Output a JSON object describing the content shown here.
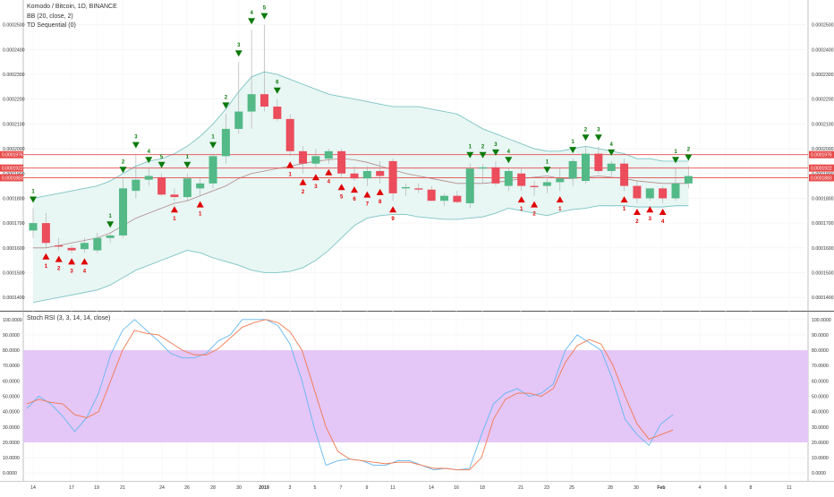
{
  "legend": {
    "symbol": "Komodo / Bitcoin, 1D, BINANCE",
    "bb": "BB (20, close, 2)",
    "td": "TD Sequential (0)",
    "stoch": "Stoch RSI (3, 3, 14, 14, close)"
  },
  "colors": {
    "up": "#53b987",
    "down": "#eb4d5c",
    "bb_band": "#7ec4c4",
    "bb_fill": "#e8f6f4",
    "bb_basis": "#b08a8a",
    "td_sell": "#0a7a0a",
    "td_buy": "#e00000",
    "stoch_k": "#63b8f0",
    "stoch_d": "#f4784e",
    "stoch_band": "#e4c6f7",
    "hline": "#e84a4a"
  },
  "chart_data": [
    {
      "type": "candlestick",
      "title": "Komodo / Bitcoin, 1D, BINANCE",
      "ylim": [
        0.000135,
        0.00026
      ],
      "y_ticks": [
        "0.0001400",
        "0.0001500",
        "0.0001600",
        "0.0001700",
        "0.0001800",
        "0.0001900",
        "0.0002000",
        "0.0002100",
        "0.0002200",
        "0.0002300",
        "0.0002400",
        "0.0002500"
      ],
      "x_ticks": [
        "14",
        "17",
        "19",
        "21",
        "24",
        "26",
        "28",
        "30",
        "2019",
        "3",
        "5",
        "7",
        "9",
        "11",
        "14",
        "16",
        "18",
        "21",
        "23",
        "25",
        "28",
        "30",
        "Feb",
        "4",
        "6",
        "8",
        "11"
      ],
      "price_lines": [
        {
          "value": 0.0001976,
          "label": "0.0001976"
        },
        {
          "value": 0.0001922,
          "label": "0.0001922"
        },
        {
          "value": 0.0001883,
          "label": "0.0001883"
        }
      ],
      "candles": [
        {
          "o": 0.000167,
          "h": 0.000176,
          "l": 0.000164,
          "c": 0.00017
        },
        {
          "o": 0.00017,
          "h": 0.000174,
          "l": 0.00016,
          "c": 0.000162
        },
        {
          "o": 0.000161,
          "h": 0.000164,
          "l": 0.000159,
          "c": 0.0001605
        },
        {
          "o": 0.00016,
          "h": 0.000161,
          "l": 0.000158,
          "c": 0.000159
        },
        {
          "o": 0.0001595,
          "h": 0.000164,
          "l": 0.000158,
          "c": 0.000162
        },
        {
          "o": 0.000159,
          "h": 0.000166,
          "l": 0.000158,
          "c": 0.000164
        },
        {
          "o": 0.000164,
          "h": 0.000166,
          "l": 0.000162,
          "c": 0.000165
        },
        {
          "o": 0.000165,
          "h": 0.000188,
          "l": 0.000164,
          "c": 0.000184
        },
        {
          "o": 0.000183,
          "h": 0.000198,
          "l": 0.00018,
          "c": 0.0001875
        },
        {
          "o": 0.0001875,
          "h": 0.000192,
          "l": 0.000185,
          "c": 0.000189
        },
        {
          "o": 0.0001885,
          "h": 0.00019,
          "l": 0.000181,
          "c": 0.0001815
        },
        {
          "o": 0.0001815,
          "h": 0.000184,
          "l": 0.000179,
          "c": 0.0001805
        },
        {
          "o": 0.0001805,
          "h": 0.00019,
          "l": 0.000179,
          "c": 0.000188
        },
        {
          "o": 0.000184,
          "h": 0.000188,
          "l": 0.000181,
          "c": 0.000186
        },
        {
          "o": 0.000186,
          "h": 0.000198,
          "l": 0.000184,
          "c": 0.000197
        },
        {
          "o": 0.000197,
          "h": 0.000214,
          "l": 0.000194,
          "c": 0.000208
        },
        {
          "o": 0.000208,
          "h": 0.000235,
          "l": 0.000206,
          "c": 0.000215
        },
        {
          "o": 0.000215,
          "h": 0.000248,
          "l": 0.000208,
          "c": 0.000222
        },
        {
          "o": 0.000222,
          "h": 0.00025,
          "l": 0.000215,
          "c": 0.000217
        },
        {
          "o": 0.000217,
          "h": 0.00022,
          "l": 0.000211,
          "c": 0.000212
        },
        {
          "o": 0.000212,
          "h": 0.000214,
          "l": 0.000197,
          "c": 0.000199
        },
        {
          "o": 0.000199,
          "h": 0.000201,
          "l": 0.00019,
          "c": 0.000194
        },
        {
          "o": 0.000194,
          "h": 0.0002,
          "l": 0.000192,
          "c": 0.000197
        },
        {
          "o": 0.000196,
          "h": 0.0002,
          "l": 0.000194,
          "c": 0.000199
        },
        {
          "o": 0.000199,
          "h": 0.0002,
          "l": 0.000188,
          "c": 0.00019
        },
        {
          "o": 0.00019,
          "h": 0.000193,
          "l": 0.000187,
          "c": 0.000188
        },
        {
          "o": 0.000188,
          "h": 0.000193,
          "l": 0.000185,
          "c": 0.000191
        },
        {
          "o": 0.000191,
          "h": 0.000195,
          "l": 0.000186,
          "c": 0.000189
        },
        {
          "o": 0.000195,
          "h": 0.000196,
          "l": 0.000179,
          "c": 0.000182
        },
        {
          "o": 0.000184,
          "h": 0.000186,
          "l": 0.000181,
          "c": 0.0001845
        },
        {
          "o": 0.000184,
          "h": 0.000186,
          "l": 0.000182,
          "c": 0.0001835
        },
        {
          "o": 0.0001835,
          "h": 0.000185,
          "l": 0.000179,
          "c": 0.000179
        },
        {
          "o": 0.000179,
          "h": 0.000182,
          "l": 0.000177,
          "c": 0.000181
        },
        {
          "o": 0.000181,
          "h": 0.000183,
          "l": 0.000178,
          "c": 0.0001785
        },
        {
          "o": 0.000178,
          "h": 0.000194,
          "l": 0.000176,
          "c": 0.000192
        },
        {
          "o": 0.000192,
          "h": 0.000194,
          "l": 0.000186,
          "c": 0.0001925
        },
        {
          "o": 0.0001925,
          "h": 0.000195,
          "l": 0.000185,
          "c": 0.000186
        },
        {
          "o": 0.000185,
          "h": 0.000192,
          "l": 0.000183,
          "c": 0.000191
        },
        {
          "o": 0.00019,
          "h": 0.000192,
          "l": 0.000183,
          "c": 0.000185
        },
        {
          "o": 0.000185,
          "h": 0.000187,
          "l": 0.000181,
          "c": 0.0001845
        },
        {
          "o": 0.000185,
          "h": 0.000188,
          "l": 0.000182,
          "c": 0.0001865
        },
        {
          "o": 0.0001865,
          "h": 0.000192,
          "l": 0.000183,
          "c": 0.000188
        },
        {
          "o": 0.000188,
          "h": 0.000196,
          "l": 0.000185,
          "c": 0.000195
        },
        {
          "o": 0.000187,
          "h": 0.000201,
          "l": 0.000186,
          "c": 0.000198
        },
        {
          "o": 0.000198,
          "h": 0.000201,
          "l": 0.00019,
          "c": 0.000191
        },
        {
          "o": 0.000191,
          "h": 0.000195,
          "l": 0.000189,
          "c": 0.000194
        },
        {
          "o": 0.000194,
          "h": 0.000196,
          "l": 0.000183,
          "c": 0.000185
        },
        {
          "o": 0.000185,
          "h": 0.000187,
          "l": 0.000178,
          "c": 0.00018
        },
        {
          "o": 0.00018,
          "h": 0.000184,
          "l": 0.000179,
          "c": 0.000184
        },
        {
          "o": 0.000184,
          "h": 0.000185,
          "l": 0.000178,
          "c": 0.00018
        },
        {
          "o": 0.00018,
          "h": 0.000192,
          "l": 0.000179,
          "c": 0.000186
        },
        {
          "o": 0.000186,
          "h": 0.000193,
          "l": 0.000184,
          "c": 0.000189
        }
      ],
      "bb_upper": [
        0.00018,
        0.000181,
        0.000182,
        0.000183,
        0.000184,
        0.000185,
        0.000187,
        0.00019,
        0.000193,
        0.000195,
        0.000196,
        0.000198,
        0.000201,
        0.000205,
        0.00021,
        0.000216,
        0.000223,
        0.000229,
        0.000231,
        0.00023,
        0.000228,
        0.000226,
        0.000224,
        0.000222,
        0.000221,
        0.00022,
        0.000219,
        0.000218,
        0.000217,
        0.000217,
        0.000217,
        0.000216,
        0.000215,
        0.000214,
        0.000211,
        0.000208,
        0.000206,
        0.000204,
        0.000202,
        0.0002,
        0.000199,
        0.000199,
        0.0002,
        0.000201,
        0.0002,
        0.000199,
        0.000198,
        0.000196,
        0.000196,
        0.000195,
        0.000195,
        0.000195
      ],
      "bb_basis": [
        0.00016,
        0.00016,
        0.000161,
        0.000162,
        0.000163,
        0.000164,
        0.000166,
        0.000169,
        0.000172,
        0.000174,
        0.000176,
        0.000178,
        0.000179,
        0.000181,
        0.000183,
        0.000185,
        0.000188,
        0.00019,
        0.000191,
        0.000192,
        0.000193,
        0.000194,
        0.000195,
        0.0001955,
        0.000196,
        0.0001955,
        0.0001945,
        0.000193,
        0.0001915,
        0.00019,
        0.000189,
        0.000188,
        0.000187,
        0.000186,
        0.000186,
        0.000186,
        0.0001865,
        0.000187,
        0.000188,
        0.0001885,
        0.000189,
        0.000188,
        0.000188,
        0.0001885,
        0.000189,
        0.0001885,
        0.000188,
        0.000187,
        0.0001865,
        0.000186,
        0.000186,
        0.000186
      ],
      "bb_lower": [
        0.000138,
        0.000139,
        0.00014,
        0.000141,
        0.000142,
        0.000143,
        0.000145,
        0.000148,
        0.000151,
        0.000153,
        0.000155,
        0.000157,
        0.000159,
        0.000158,
        0.000156,
        0.0001545,
        0.000153,
        0.000151,
        0.00015,
        0.00015,
        0.0001505,
        0.000152,
        0.000155,
        0.000159,
        0.000164,
        0.000169,
        0.000172,
        0.000173,
        0.0001735,
        0.0001735,
        0.0001725,
        0.000172,
        0.0001715,
        0.0001715,
        0.000172,
        0.0001725,
        0.000174,
        0.000176,
        0.000175,
        0.000174,
        0.000173,
        0.0001745,
        0.0001755,
        0.000176,
        0.000177,
        0.000177,
        0.000177,
        0.0001765,
        0.0001765,
        0.0001765,
        0.000177,
        0.000177
      ],
      "td_sell": [
        {
          "i": 0,
          "label": "1"
        },
        {
          "i": 6,
          "label": "1"
        },
        {
          "i": 7,
          "label": "2"
        },
        {
          "i": 8,
          "label": "3"
        },
        {
          "i": 9,
          "label": "4"
        },
        {
          "i": 10,
          "label": "5"
        },
        {
          "i": 12,
          "label": "1"
        },
        {
          "i": 14,
          "label": "1"
        },
        {
          "i": 15,
          "label": "2"
        },
        {
          "i": 16,
          "label": "3"
        },
        {
          "i": 17,
          "label": "4"
        },
        {
          "i": 18,
          "label": "5"
        },
        {
          "i": 19,
          "label": "6"
        },
        {
          "i": 34,
          "label": "1"
        },
        {
          "i": 35,
          "label": "2"
        },
        {
          "i": 36,
          "label": "3"
        },
        {
          "i": 37,
          "label": "4"
        },
        {
          "i": 40,
          "label": "1"
        },
        {
          "i": 42,
          "label": "1"
        },
        {
          "i": 43,
          "label": "2"
        },
        {
          "i": 44,
          "label": "3"
        },
        {
          "i": 45,
          "label": "4"
        },
        {
          "i": 50,
          "label": "1"
        },
        {
          "i": 51,
          "label": "2"
        }
      ],
      "td_buy": [
        {
          "i": 1,
          "label": "1"
        },
        {
          "i": 2,
          "label": "2"
        },
        {
          "i": 3,
          "label": "3"
        },
        {
          "i": 4,
          "label": "4"
        },
        {
          "i": 11,
          "label": "1"
        },
        {
          "i": 13,
          "label": "1"
        },
        {
          "i": 20,
          "label": "1"
        },
        {
          "i": 21,
          "label": "2"
        },
        {
          "i": 22,
          "label": "3"
        },
        {
          "i": 23,
          "label": "4"
        },
        {
          "i": 24,
          "label": "5"
        },
        {
          "i": 25,
          "label": "6"
        },
        {
          "i": 26,
          "label": "7"
        },
        {
          "i": 27,
          "label": "8"
        },
        {
          "i": 28,
          "label": "9"
        },
        {
          "i": 38,
          "label": "1"
        },
        {
          "i": 39,
          "label": "2"
        },
        {
          "i": 41,
          "label": "1"
        },
        {
          "i": 46,
          "label": "1"
        },
        {
          "i": 47,
          "label": "2"
        },
        {
          "i": 48,
          "label": "3"
        },
        {
          "i": 49,
          "label": "4"
        }
      ]
    },
    {
      "type": "line",
      "title": "Stoch RSI (3, 3, 14, 14, close)",
      "ylim": [
        -4,
        104
      ],
      "y_ticks": [
        "0.0000",
        "10.0000",
        "20.0000",
        "30.0000",
        "40.0000",
        "50.0000",
        "60.0000",
        "70.0000",
        "80.0000",
        "90.0000",
        "100.0000"
      ],
      "band": [
        20,
        80
      ],
      "series": [
        {
          "name": "K",
          "values": [
            42,
            50,
            45,
            37,
            27,
            36,
            52,
            77,
            93,
            100,
            93,
            86,
            78,
            75,
            75,
            78,
            86,
            90,
            100,
            100,
            100,
            96,
            84,
            60,
            30,
            5,
            8,
            9,
            8,
            5,
            5,
            8,
            8,
            5,
            2,
            3,
            2,
            3,
            25,
            45,
            52,
            55,
            50,
            52,
            58,
            80,
            90,
            85,
            80,
            60,
            35,
            25,
            18,
            32,
            38
          ]
        },
        {
          "name": "D",
          "values": [
            45,
            48,
            46,
            45,
            38,
            36,
            40,
            60,
            80,
            93,
            91,
            90,
            85,
            80,
            77,
            77,
            81,
            88,
            95,
            98,
            100,
            98,
            92,
            80,
            55,
            30,
            14,
            9,
            8,
            7,
            6,
            7,
            7,
            5,
            3,
            3,
            2,
            2,
            10,
            35,
            48,
            52,
            52,
            50,
            55,
            72,
            83,
            87,
            84,
            70,
            50,
            32,
            22,
            25,
            28
          ]
        }
      ]
    }
  ]
}
